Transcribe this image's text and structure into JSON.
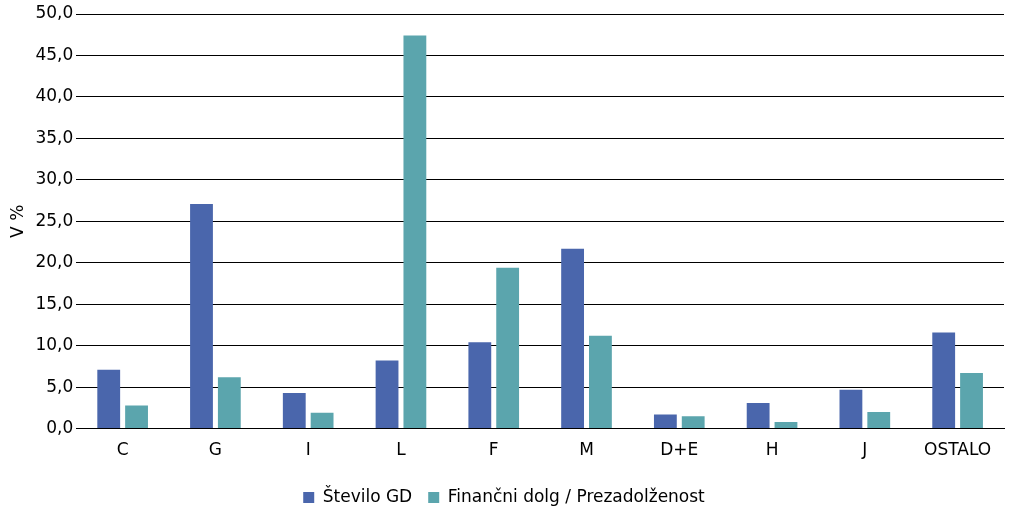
{
  "chart_data": {
    "type": "bar",
    "ylabel": "V %",
    "categories": [
      "C",
      "G",
      "I",
      "L",
      "F",
      "M",
      "D+E",
      "H",
      "J",
      "OSTALO"
    ],
    "series": [
      {
        "name": "Število GD",
        "color": "#4a66ac",
        "values": [
          7.1,
          27.1,
          4.3,
          8.2,
          10.4,
          21.7,
          1.7,
          3.1,
          4.7,
          11.6
        ]
      },
      {
        "name": "Finančni dolg / Prezadolženost",
        "color": "#5ba5ad",
        "values": [
          2.8,
          6.2,
          1.9,
          47.4,
          19.4,
          11.2,
          1.5,
          0.8,
          2.0,
          6.7
        ]
      }
    ],
    "ylim": [
      0,
      50
    ],
    "yticks": [
      {
        "value": 0,
        "label": "0,0"
      },
      {
        "value": 5,
        "label": "5,0"
      },
      {
        "value": 10,
        "label": "10,0"
      },
      {
        "value": 15,
        "label": "15,0"
      },
      {
        "value": 20,
        "label": "20,0"
      },
      {
        "value": 25,
        "label": "25,0"
      },
      {
        "value": 30,
        "label": "30,0"
      },
      {
        "value": 35,
        "label": "35,0"
      },
      {
        "value": 40,
        "label": "40,0"
      },
      {
        "value": 45,
        "label": "45,0"
      },
      {
        "value": 50,
        "label": "50,0"
      }
    ],
    "grid": "y",
    "legend": "bottom"
  }
}
